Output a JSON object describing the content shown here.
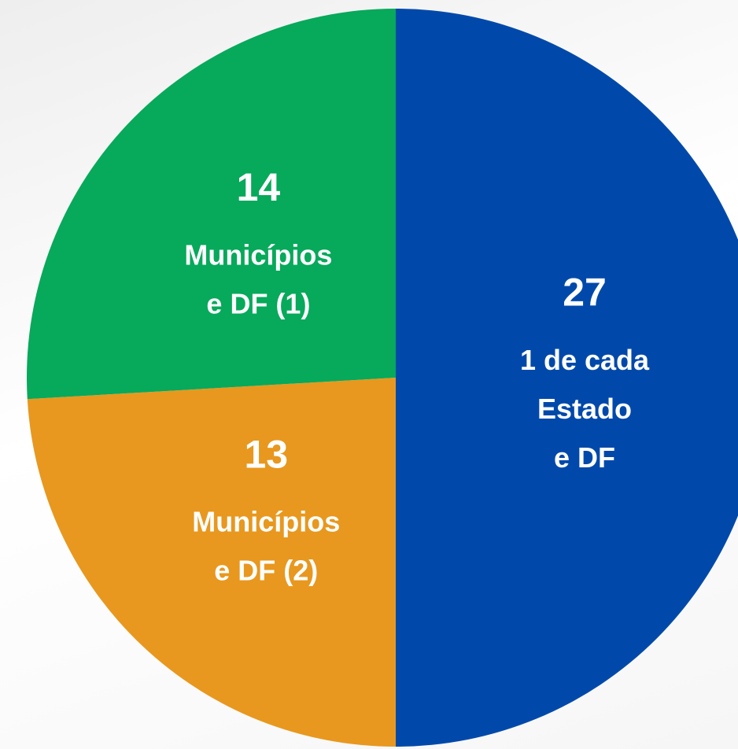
{
  "chart_data": {
    "type": "pie",
    "categories": [
      [
        "1 de cada",
        "Estado",
        "e DF"
      ],
      [
        "Municípios",
        "e DF (2)"
      ],
      [
        "Municípios",
        "e DF (1)"
      ]
    ],
    "values": [
      27,
      13,
      14
    ],
    "colors": [
      "#0049AA",
      "#E8981E",
      "#07A95B"
    ]
  }
}
